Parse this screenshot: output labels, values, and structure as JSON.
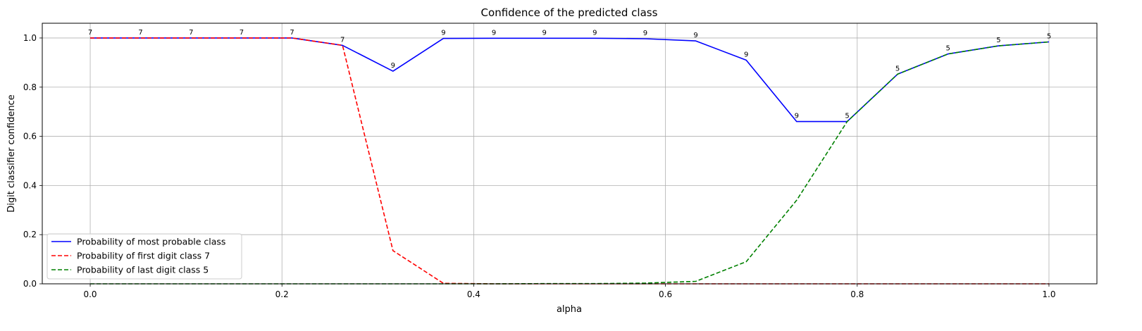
{
  "chart_data": {
    "type": "line",
    "title": "Confidence of the predicted class",
    "xlabel": "alpha",
    "ylabel": "Digit classifier confidence",
    "xlim": [
      -0.05,
      1.05
    ],
    "ylim": [
      0,
      1.06
    ],
    "xticks": [
      0.0,
      0.2,
      0.4,
      0.6,
      0.8,
      1.0
    ],
    "xtick_labels": [
      "0.0",
      "0.2",
      "0.4",
      "0.6",
      "0.8",
      "1.0"
    ],
    "yticks": [
      0.0,
      0.2,
      0.4,
      0.6,
      0.8,
      1.0
    ],
    "ytick_labels": [
      "0.0",
      "0.2",
      "0.4",
      "0.6",
      "0.8",
      "1.0"
    ],
    "grid": true,
    "legend_position": "lower-left",
    "x": [
      0.0,
      0.0526,
      0.1053,
      0.1579,
      0.2105,
      0.2632,
      0.3158,
      0.3684,
      0.4211,
      0.4737,
      0.5263,
      0.5789,
      0.6316,
      0.6842,
      0.7368,
      0.7895,
      0.8421,
      0.8947,
      0.9474,
      1.0
    ],
    "series": [
      {
        "name": "Probability of most probable class",
        "color": "#0000ff",
        "dash": "solid",
        "values": [
          1.0,
          1.0,
          1.0,
          1.0,
          1.0,
          0.97,
          0.865,
          0.998,
          0.999,
          0.999,
          0.999,
          0.997,
          0.988,
          0.91,
          0.66,
          0.66,
          0.853,
          0.935,
          0.968,
          0.984
        ]
      },
      {
        "name": "Probability of first digit class 7",
        "color": "#ff0000",
        "dash": "dashed",
        "values": [
          1.0,
          1.0,
          1.0,
          1.0,
          1.0,
          0.97,
          0.135,
          0.002,
          0.0,
          0.0,
          0.0,
          0.0,
          0.0,
          0.0,
          0.0,
          0.0,
          0.0,
          0.0,
          0.0,
          0.0
        ]
      },
      {
        "name": "Probability of last digit class 5",
        "color": "#008000",
        "dash": "dashed",
        "values": [
          0.0,
          0.0,
          0.0,
          0.0,
          0.0,
          0.0,
          0.0,
          0.0,
          0.0,
          0.001,
          0.001,
          0.003,
          0.01,
          0.09,
          0.34,
          0.66,
          0.853,
          0.935,
          0.968,
          0.984
        ]
      }
    ],
    "point_labels": [
      "7",
      "7",
      "7",
      "7",
      "7",
      "7",
      "9",
      "9",
      "9",
      "9",
      "9",
      "9",
      "9",
      "9",
      "9",
      "5",
      "5",
      "5",
      "5",
      "5"
    ]
  }
}
